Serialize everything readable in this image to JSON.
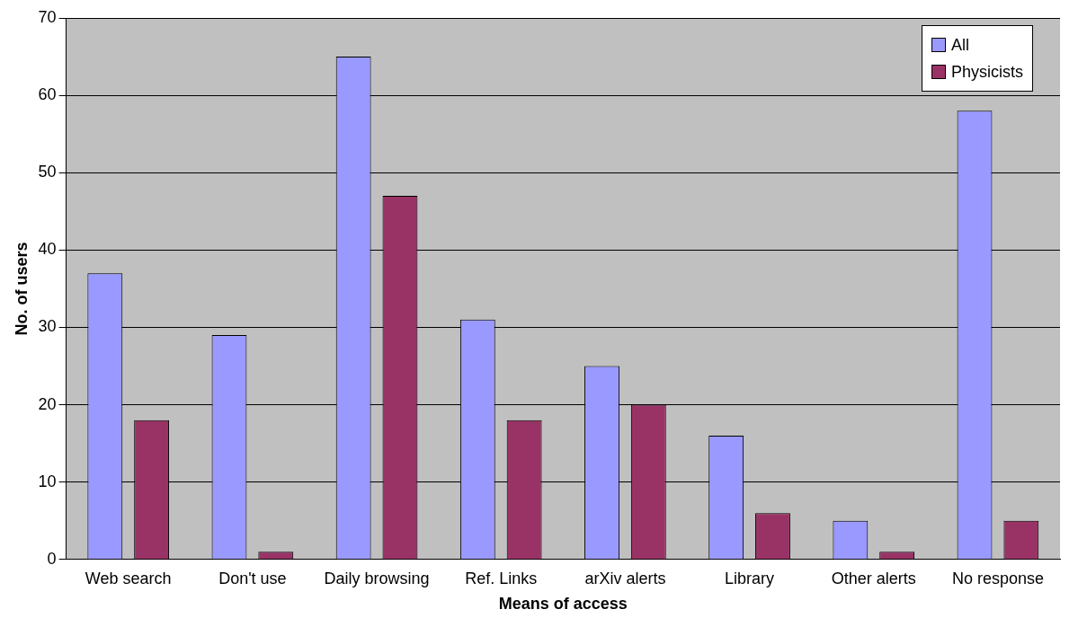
{
  "chart_data": {
    "type": "bar",
    "xlabel": "Means of access",
    "ylabel": "No. of users",
    "categories": [
      "Web search",
      "Don't use",
      "Daily browsing",
      "Ref. Links",
      "arXiv alerts",
      "Library",
      "Other alerts",
      "No response"
    ],
    "series": [
      {
        "name": "All",
        "color": "#9999ff",
        "values": [
          37,
          29,
          65,
          31,
          25,
          16,
          5,
          58
        ]
      },
      {
        "name": "Physicists",
        "color": "#993366",
        "values": [
          18,
          1,
          47,
          18,
          20,
          6,
          1,
          5
        ]
      }
    ],
    "ylim": [
      0,
      70
    ],
    "yticks": [
      0,
      10,
      20,
      30,
      40,
      50,
      60,
      70
    ],
    "grid": "y",
    "legend": "top right"
  }
}
